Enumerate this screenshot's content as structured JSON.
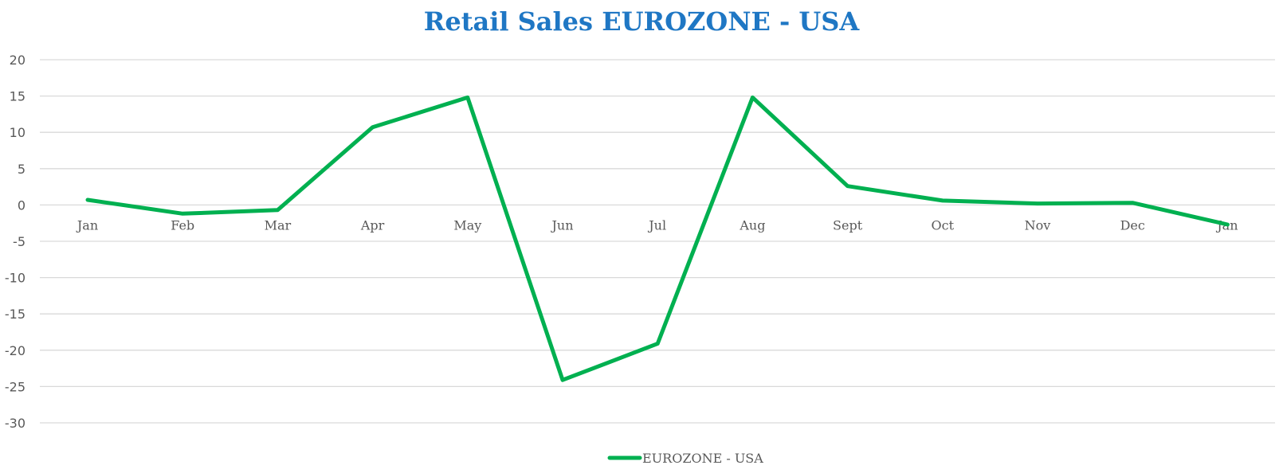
{
  "chart_data": {
    "type": "line",
    "title": "Retail Sales EUROZONE - USA",
    "categories": [
      "Jan",
      "Feb",
      "Mar",
      "Apr",
      "May",
      "Jun",
      "Jul",
      "Aug",
      "Sept",
      "Oct",
      "Nov",
      "Dec",
      "Jan"
    ],
    "series": [
      {
        "name": "EUROZONE - USA",
        "values": [
          0.7,
          -1.2,
          -0.7,
          10.7,
          14.8,
          -24.1,
          -19.1,
          14.8,
          2.6,
          0.6,
          0.2,
          0.3,
          -2.7
        ]
      }
    ],
    "ylim": [
      -30,
      20
    ],
    "yticks": [
      20,
      15,
      10,
      5,
      0,
      -5,
      -10,
      -15,
      -20,
      -25,
      -30
    ],
    "grid": true,
    "legend_position": "bottom",
    "colors": {
      "title": "#1f77c4",
      "series": "#00b050",
      "grid": "#d9d9d9",
      "text": "#595959"
    }
  }
}
